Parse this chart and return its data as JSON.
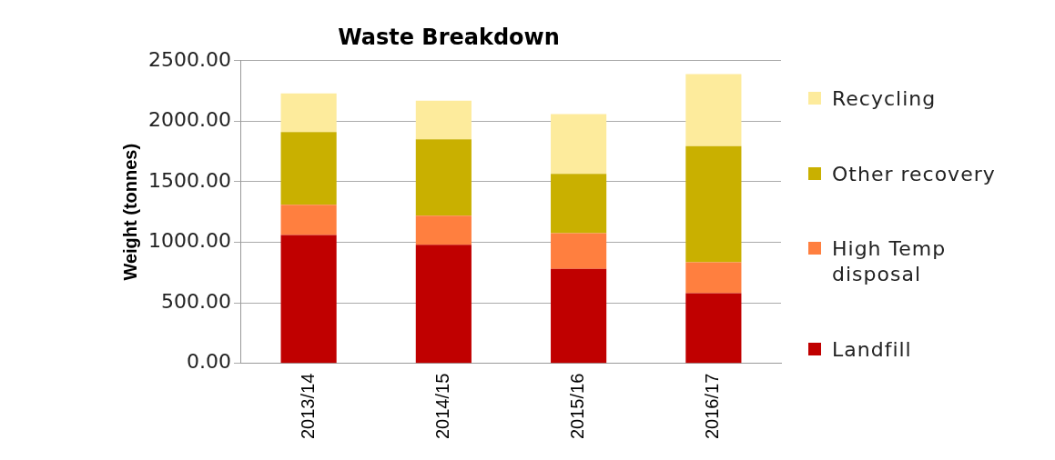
{
  "chart_data": {
    "type": "bar",
    "title": "Waste Breakdown",
    "ylabel": "Weight (tonnes)",
    "categories": [
      "2013/14",
      "2014/15",
      "2015/16",
      "2016/17"
    ],
    "series": [
      {
        "name": "Landfill",
        "color": "#c00000",
        "values": [
          1060,
          980,
          780,
          580
        ]
      },
      {
        "name": "High Temp disposal",
        "color": "#ff7f3f",
        "values": [
          250,
          240,
          295,
          255
        ]
      },
      {
        "name": "Other recovery",
        "color": "#c9b000",
        "values": [
          600,
          630,
          490,
          960
        ]
      },
      {
        "name": "Recycling",
        "color": "#fdeb9c",
        "values": [
          320,
          320,
          495,
          595
        ]
      }
    ],
    "stacked": true,
    "ylim": [
      0,
      2500
    ],
    "yticks": [
      {
        "value": 0,
        "label": "0.00"
      },
      {
        "value": 500,
        "label": "500.00"
      },
      {
        "value": 1000,
        "label": "1000.00"
      },
      {
        "value": 1500,
        "label": "1500.00"
      },
      {
        "value": 2000,
        "label": "2000.00"
      },
      {
        "value": 2500,
        "label": "2500.00"
      }
    ],
    "grid": "y",
    "legend": "right"
  }
}
